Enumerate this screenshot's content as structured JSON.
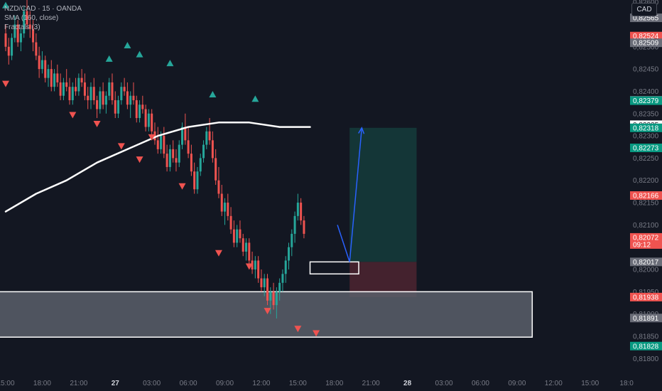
{
  "legend": {
    "symbol": "NZD/CAD · 15 · OANDA",
    "indicator1": "SMA (160, close)",
    "indicator2": "Fractals (3)"
  },
  "currency_button": "CAD",
  "colors": {
    "background": "#131722",
    "up": "#26a69a",
    "down": "#ef5350",
    "sma": "#ffffff",
    "arrow": "#2962ff",
    "profit_zone": "#153a3a",
    "loss_zone": "#4a2330",
    "support_zone": "#5b5f6a",
    "grey_badge": "#6a6d78"
  },
  "chart_data": {
    "type": "candlestick",
    "ylim": [
      0.81775,
      0.82605
    ],
    "y_ticks": [
      "0,82600",
      "0,82500",
      "0,82450",
      "0,82400",
      "0,82350",
      "0,82300",
      "0,82250",
      "0,82200",
      "0,82150",
      "0,82100",
      "0,82000",
      "0,81950",
      "0,81900",
      "0,81850",
      "0,81800"
    ],
    "x_ticks": [
      {
        "label": "15:00",
        "bar": 0
      },
      {
        "label": "18:00",
        "bar": 12
      },
      {
        "label": "21:00",
        "bar": 24
      },
      {
        "label": "27",
        "bar": 36
      },
      {
        "label": "03:00",
        "bar": 48
      },
      {
        "label": "06:00",
        "bar": 60
      },
      {
        "label": "09:00",
        "bar": 72
      },
      {
        "label": "12:00",
        "bar": 84
      },
      {
        "label": "15:00",
        "bar": 96
      },
      {
        "label": "18:00",
        "bar": 108
      },
      {
        "label": "21:00",
        "bar": 120
      },
      {
        "label": "28",
        "bar": 132
      },
      {
        "label": "03:00",
        "bar": 144
      },
      {
        "label": "06:00",
        "bar": 156
      },
      {
        "label": "09:00",
        "bar": 168
      },
      {
        "label": "12:00",
        "bar": 180
      },
      {
        "label": "15:00",
        "bar": 192
      },
      {
        "label": "18:0",
        "bar": 204
      }
    ],
    "price_badges": [
      {
        "text": "0,82565",
        "price": 0.82565,
        "kind": "grey"
      },
      {
        "text": "0,82524",
        "price": 0.82524,
        "kind": "red"
      },
      {
        "text": "0,82509",
        "price": 0.82509,
        "kind": "grey"
      },
      {
        "text": "0,82380",
        "price": 0.8238,
        "kind": "grey"
      },
      {
        "text": "0,82379",
        "price": 0.82379,
        "kind": "green"
      },
      {
        "text": "0,82325",
        "price": 0.82325,
        "kind": "white"
      },
      {
        "text": "0,82318",
        "price": 0.82318,
        "kind": "green"
      },
      {
        "text": "0,82273",
        "price": 0.82273,
        "kind": "green"
      },
      {
        "text": "0,82166",
        "price": 0.82166,
        "kind": "red"
      },
      {
        "text": "0,82072",
        "price": 0.82072,
        "kind": "red",
        "sub": "09:12"
      },
      {
        "text": "0,82017",
        "price": 0.82017,
        "kind": "grey"
      },
      {
        "text": "0,81938",
        "price": 0.81938,
        "kind": "red"
      },
      {
        "text": "0,81891",
        "price": 0.81891,
        "kind": "grey"
      },
      {
        "text": "0,81828",
        "price": 0.81828,
        "kind": "green"
      }
    ],
    "candles": [
      [
        0.8253,
        0.8255,
        0.8249,
        0.825
      ],
      [
        0.825,
        0.8252,
        0.8246,
        0.8248
      ],
      [
        0.8248,
        0.8253,
        0.8247,
        0.8252
      ],
      [
        0.8252,
        0.8257,
        0.8251,
        0.8255
      ],
      [
        0.8255,
        0.8256,
        0.825,
        0.8251
      ],
      [
        0.8251,
        0.8254,
        0.8249,
        0.8253
      ],
      [
        0.8253,
        0.8259,
        0.8252,
        0.8258
      ],
      [
        0.8258,
        0.8261,
        0.8254,
        0.8255
      ],
      [
        0.8255,
        0.8258,
        0.8252,
        0.8254
      ],
      [
        0.8254,
        0.8256,
        0.8249,
        0.8251
      ],
      [
        0.8251,
        0.8253,
        0.8247,
        0.8248
      ],
      [
        0.8248,
        0.825,
        0.8243,
        0.8245
      ],
      [
        0.8245,
        0.8249,
        0.8244,
        0.8247
      ],
      [
        0.8247,
        0.8248,
        0.8242,
        0.8243
      ],
      [
        0.8243,
        0.8246,
        0.8241,
        0.8245
      ],
      [
        0.8245,
        0.8247,
        0.824,
        0.8241
      ],
      [
        0.8241,
        0.8245,
        0.824,
        0.8244
      ],
      [
        0.8244,
        0.8246,
        0.8241,
        0.8242
      ],
      [
        0.8242,
        0.8244,
        0.8238,
        0.8239
      ],
      [
        0.8239,
        0.8243,
        0.8238,
        0.8242
      ],
      [
        0.8242,
        0.8245,
        0.824,
        0.8241
      ],
      [
        0.8241,
        0.8243,
        0.8237,
        0.8238
      ],
      [
        0.8238,
        0.8242,
        0.8237,
        0.8241
      ],
      [
        0.8241,
        0.8243,
        0.8239,
        0.824
      ],
      [
        0.824,
        0.8244,
        0.8239,
        0.8243
      ],
      [
        0.8243,
        0.8245,
        0.8241,
        0.8242
      ],
      [
        0.8242,
        0.8244,
        0.8238,
        0.8239
      ],
      [
        0.8239,
        0.8241,
        0.8236,
        0.8238
      ],
      [
        0.8238,
        0.8242,
        0.8236,
        0.8241
      ],
      [
        0.8241,
        0.8243,
        0.8237,
        0.8238
      ],
      [
        0.8238,
        0.8239,
        0.8234,
        0.8236
      ],
      [
        0.8236,
        0.8241,
        0.8235,
        0.824
      ],
      [
        0.824,
        0.8242,
        0.8236,
        0.8237
      ],
      [
        0.8237,
        0.824,
        0.8235,
        0.8239
      ],
      [
        0.8239,
        0.8243,
        0.8238,
        0.8242
      ],
      [
        0.8242,
        0.8244,
        0.8237,
        0.8238
      ],
      [
        0.8238,
        0.824,
        0.8234,
        0.8235
      ],
      [
        0.8235,
        0.8239,
        0.8234,
        0.8238
      ],
      [
        0.8238,
        0.8242,
        0.8237,
        0.8241
      ],
      [
        0.8241,
        0.8243,
        0.8239,
        0.824
      ],
      [
        0.824,
        0.8242,
        0.8236,
        0.8237
      ],
      [
        0.8237,
        0.824,
        0.8234,
        0.8239
      ],
      [
        0.8239,
        0.8242,
        0.8237,
        0.8238
      ],
      [
        0.8238,
        0.8239,
        0.8233,
        0.8234
      ],
      [
        0.8234,
        0.8238,
        0.8233,
        0.8237
      ],
      [
        0.8237,
        0.8239,
        0.8235,
        0.8236
      ],
      [
        0.8236,
        0.8237,
        0.8231,
        0.8232
      ],
      [
        0.8232,
        0.8236,
        0.8231,
        0.8235
      ],
      [
        0.8235,
        0.8236,
        0.823,
        0.8231
      ],
      [
        0.8231,
        0.8233,
        0.8228,
        0.8229
      ],
      [
        0.8229,
        0.8232,
        0.8226,
        0.8227
      ],
      [
        0.8227,
        0.8231,
        0.8226,
        0.823
      ],
      [
        0.823,
        0.8232,
        0.8225,
        0.8226
      ],
      [
        0.8226,
        0.8228,
        0.8222,
        0.8223
      ],
      [
        0.8223,
        0.8228,
        0.8222,
        0.8227
      ],
      [
        0.8227,
        0.8229,
        0.8224,
        0.8225
      ],
      [
        0.8225,
        0.8227,
        0.8222,
        0.8224
      ],
      [
        0.8224,
        0.8229,
        0.8223,
        0.8228
      ],
      [
        0.8228,
        0.8233,
        0.8227,
        0.8232
      ],
      [
        0.8232,
        0.8235,
        0.8228,
        0.8229
      ],
      [
        0.8229,
        0.8232,
        0.8225,
        0.8226
      ],
      [
        0.8226,
        0.8228,
        0.8221,
        0.8222
      ],
      [
        0.8222,
        0.8224,
        0.8217,
        0.8218
      ],
      [
        0.8218,
        0.8223,
        0.8217,
        0.8222
      ],
      [
        0.8222,
        0.8226,
        0.8221,
        0.8225
      ],
      [
        0.8225,
        0.8229,
        0.8224,
        0.8228
      ],
      [
        0.8228,
        0.8232,
        0.8227,
        0.8231
      ],
      [
        0.8231,
        0.8234,
        0.8228,
        0.8229
      ],
      [
        0.8229,
        0.8231,
        0.8224,
        0.8225
      ],
      [
        0.8225,
        0.8227,
        0.8219,
        0.822
      ],
      [
        0.822,
        0.8223,
        0.8216,
        0.8217
      ],
      [
        0.8217,
        0.8219,
        0.8212,
        0.8213
      ],
      [
        0.8213,
        0.8216,
        0.821,
        0.8215
      ],
      [
        0.8215,
        0.8217,
        0.8211,
        0.8212
      ],
      [
        0.8212,
        0.8214,
        0.8208,
        0.8209
      ],
      [
        0.8209,
        0.8211,
        0.8205,
        0.8206
      ],
      [
        0.8206,
        0.821,
        0.8205,
        0.8209
      ],
      [
        0.8209,
        0.8211,
        0.8206,
        0.8207
      ],
      [
        0.8207,
        0.8208,
        0.8203,
        0.8204
      ],
      [
        0.8204,
        0.8207,
        0.8202,
        0.8206
      ],
      [
        0.8206,
        0.8207,
        0.8201,
        0.8202
      ],
      [
        0.8202,
        0.8204,
        0.8199,
        0.82
      ],
      [
        0.82,
        0.8203,
        0.8198,
        0.8202
      ],
      [
        0.8202,
        0.8203,
        0.8197,
        0.8198
      ],
      [
        0.8198,
        0.82,
        0.8195,
        0.8196
      ],
      [
        0.8196,
        0.8199,
        0.8194,
        0.8198
      ],
      [
        0.8198,
        0.8199,
        0.8192,
        0.8193
      ],
      [
        0.8193,
        0.8196,
        0.819,
        0.8195
      ],
      [
        0.8195,
        0.8197,
        0.8191,
        0.8192
      ],
      [
        0.8192,
        0.8196,
        0.8189,
        0.8195
      ],
      [
        0.8195,
        0.8198,
        0.8193,
        0.8197
      ],
      [
        0.8197,
        0.82,
        0.8195,
        0.8199
      ],
      [
        0.8199,
        0.8203,
        0.8197,
        0.8202
      ],
      [
        0.8202,
        0.8206,
        0.82,
        0.8205
      ],
      [
        0.8205,
        0.8209,
        0.8203,
        0.8208
      ],
      [
        0.8208,
        0.8213,
        0.8206,
        0.8212
      ],
      [
        0.8212,
        0.8217,
        0.8211,
        0.8215
      ],
      [
        0.8215,
        0.8216,
        0.821,
        0.8211
      ],
      [
        0.8211,
        0.8212,
        0.8207,
        0.8208
      ]
    ],
    "sma": [
      [
        0,
        0.8213
      ],
      [
        10,
        0.8217
      ],
      [
        20,
        0.822
      ],
      [
        30,
        0.8224
      ],
      [
        40,
        0.8227
      ],
      [
        50,
        0.823
      ],
      [
        60,
        0.8232
      ],
      [
        70,
        0.8233
      ],
      [
        80,
        0.8233
      ],
      [
        90,
        0.8232
      ],
      [
        100,
        0.8232
      ]
    ],
    "fractals_up": [
      [
        0,
        0.8258
      ],
      [
        6,
        0.8262
      ],
      [
        34,
        0.8246
      ],
      [
        40,
        0.8249
      ],
      [
        44,
        0.8247
      ],
      [
        54,
        0.8245
      ],
      [
        68,
        0.8238
      ],
      [
        82,
        0.8237
      ]
    ],
    "fractals_down": [
      [
        0,
        0.8243
      ],
      [
        22,
        0.8236
      ],
      [
        30,
        0.8234
      ],
      [
        38,
        0.8229
      ],
      [
        44,
        0.8226
      ],
      [
        48,
        0.8231
      ],
      [
        58,
        0.822
      ],
      [
        70,
        0.8205
      ],
      [
        80,
        0.8202
      ],
      [
        86,
        0.8192
      ],
      [
        96,
        0.8188
      ],
      [
        102,
        0.8187
      ]
    ],
    "position": {
      "entry": 0.82017,
      "target": 0.82318,
      "stop": 0.81938,
      "start_bar": 113,
      "end_bar": 135
    },
    "zone": {
      "top": 0.8195,
      "bottom": 0.81848,
      "start_bar": -5,
      "end_bar": 173
    },
    "entry_marker": {
      "top": 0.82017,
      "bottom": 0.8199,
      "start_bar": 100,
      "end_bar": 116
    },
    "arrow": {
      "from": [
        109,
        0.821
      ],
      "mid": [
        113,
        0.82017
      ],
      "to": [
        117,
        0.82318
      ]
    }
  }
}
